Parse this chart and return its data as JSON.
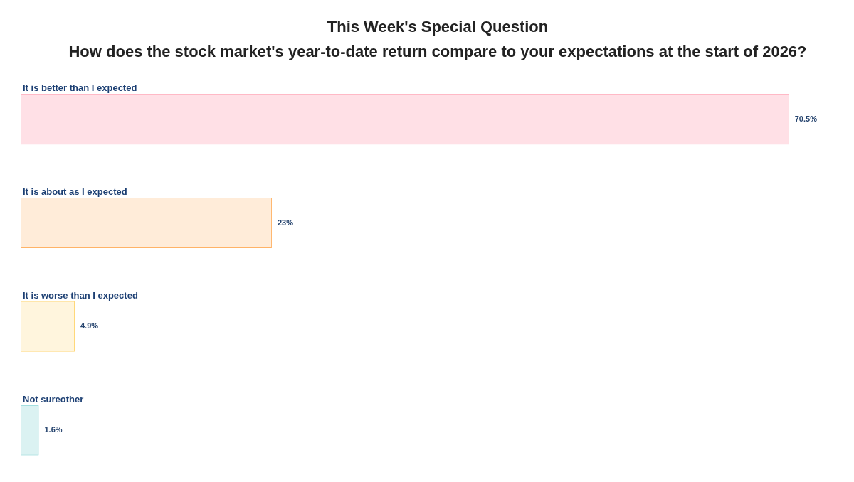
{
  "chart_data": {
    "type": "bar",
    "orientation": "horizontal",
    "title": "This Week's Special Question",
    "subtitle": "How does the stock market's year-to-date return compare to your expectations at the start of 2026?",
    "categories": [
      "It is better than I expected",
      "It is about as I expected",
      "It is worse than I expected",
      "Not sureother"
    ],
    "values": [
      70.5,
      23,
      4.9,
      1.6
    ],
    "colors": [
      "#ffe0e6",
      "#ffecd9",
      "#fff5dd",
      "#dbf2f2"
    ],
    "value_labels": [
      "70.5%",
      "23%",
      "4.9%",
      "1.6%"
    ]
  }
}
